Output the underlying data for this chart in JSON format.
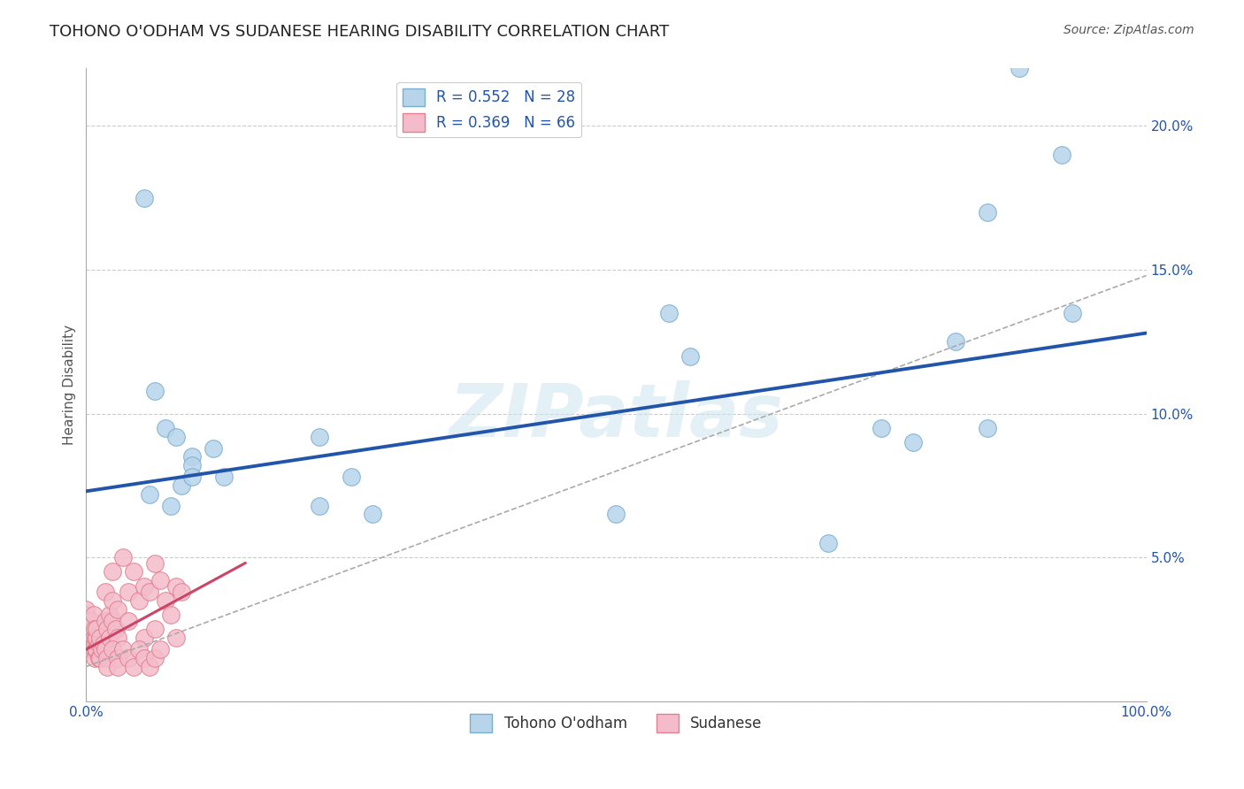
{
  "title": "TOHONO O'ODHAM VS SUDANESE HEARING DISABILITY CORRELATION CHART",
  "source": "Source: ZipAtlas.com",
  "xlabel": "",
  "ylabel": "Hearing Disability",
  "xlim": [
    0,
    1.0
  ],
  "ylim": [
    0,
    0.22
  ],
  "xticks": [
    0.0,
    0.25,
    0.5,
    0.75,
    1.0
  ],
  "xtick_labels": [
    "0.0%",
    "",
    "",
    "",
    "100.0%"
  ],
  "yticks": [
    0.0,
    0.05,
    0.1,
    0.15,
    0.2
  ],
  "ytick_labels": [
    "",
    "5.0%",
    "10.0%",
    "15.0%",
    "20.0%"
  ],
  "legend_entries": [
    {
      "label": "R = 0.552   N = 28",
      "color": "#b8d4ea",
      "edgecolor": "#7aaed0"
    },
    {
      "label": "R = 0.369   N = 66",
      "color": "#f4bccb",
      "edgecolor": "#e08090"
    }
  ],
  "tohono_scatter": [
    [
      0.055,
      0.175
    ],
    [
      0.065,
      0.108
    ],
    [
      0.075,
      0.095
    ],
    [
      0.085,
      0.092
    ],
    [
      0.09,
      0.075
    ],
    [
      0.1,
      0.085
    ],
    [
      0.06,
      0.072
    ],
    [
      0.08,
      0.068
    ],
    [
      0.1,
      0.082
    ],
    [
      0.1,
      0.078
    ],
    [
      0.12,
      0.088
    ],
    [
      0.13,
      0.078
    ],
    [
      0.22,
      0.092
    ],
    [
      0.22,
      0.068
    ],
    [
      0.25,
      0.078
    ],
    [
      0.27,
      0.065
    ],
    [
      0.5,
      0.065
    ],
    [
      0.55,
      0.135
    ],
    [
      0.57,
      0.12
    ],
    [
      0.7,
      0.055
    ],
    [
      0.75,
      0.095
    ],
    [
      0.78,
      0.09
    ],
    [
      0.82,
      0.125
    ],
    [
      0.85,
      0.17
    ],
    [
      0.85,
      0.095
    ],
    [
      0.88,
      0.22
    ],
    [
      0.92,
      0.19
    ],
    [
      0.93,
      0.135
    ]
  ],
  "sudanese_scatter": [
    [
      0.0,
      0.025
    ],
    [
      0.0,
      0.03
    ],
    [
      0.0,
      0.032
    ],
    [
      0.0,
      0.022
    ],
    [
      0.005,
      0.02
    ],
    [
      0.005,
      0.025
    ],
    [
      0.005,
      0.028
    ],
    [
      0.005,
      0.018
    ],
    [
      0.007,
      0.022
    ],
    [
      0.007,
      0.018
    ],
    [
      0.007,
      0.03
    ],
    [
      0.008,
      0.02
    ],
    [
      0.008,
      0.025
    ],
    [
      0.008,
      0.015
    ],
    [
      0.009,
      0.022
    ],
    [
      0.009,
      0.018
    ],
    [
      0.01,
      0.018
    ],
    [
      0.01,
      0.022
    ],
    [
      0.01,
      0.025
    ],
    [
      0.012,
      0.02
    ],
    [
      0.012,
      0.015
    ],
    [
      0.013,
      0.015
    ],
    [
      0.013,
      0.022
    ],
    [
      0.015,
      0.018
    ],
    [
      0.016,
      0.02
    ],
    [
      0.018,
      0.038
    ],
    [
      0.018,
      0.028
    ],
    [
      0.018,
      0.018
    ],
    [
      0.02,
      0.025
    ],
    [
      0.022,
      0.03
    ],
    [
      0.022,
      0.022
    ],
    [
      0.025,
      0.045
    ],
    [
      0.025,
      0.035
    ],
    [
      0.025,
      0.028
    ],
    [
      0.028,
      0.025
    ],
    [
      0.03,
      0.022
    ],
    [
      0.03,
      0.032
    ],
    [
      0.035,
      0.05
    ],
    [
      0.04,
      0.038
    ],
    [
      0.04,
      0.028
    ],
    [
      0.045,
      0.045
    ],
    [
      0.05,
      0.035
    ],
    [
      0.055,
      0.04
    ],
    [
      0.055,
      0.022
    ],
    [
      0.06,
      0.038
    ],
    [
      0.065,
      0.048
    ],
    [
      0.065,
      0.025
    ],
    [
      0.07,
      0.042
    ],
    [
      0.075,
      0.035
    ],
    [
      0.08,
      0.03
    ],
    [
      0.085,
      0.04
    ],
    [
      0.085,
      0.022
    ],
    [
      0.09,
      0.038
    ],
    [
      0.02,
      0.015
    ],
    [
      0.02,
      0.012
    ],
    [
      0.025,
      0.018
    ],
    [
      0.03,
      0.015
    ],
    [
      0.03,
      0.012
    ],
    [
      0.035,
      0.018
    ],
    [
      0.04,
      0.015
    ],
    [
      0.045,
      0.012
    ],
    [
      0.05,
      0.018
    ],
    [
      0.055,
      0.015
    ],
    [
      0.06,
      0.012
    ],
    [
      0.065,
      0.015
    ],
    [
      0.07,
      0.018
    ]
  ],
  "tohono_line_x": [
    0.0,
    1.0
  ],
  "tohono_line_y": [
    0.073,
    0.128
  ],
  "sudanese_solid_line_x": [
    0.0,
    0.15
  ],
  "sudanese_solid_line_y": [
    0.018,
    0.048
  ],
  "sudanese_dashed_line_x": [
    0.0,
    1.0
  ],
  "sudanese_dashed_line_y": [
    0.012,
    0.148
  ],
  "tohono_color": "#2255aa",
  "sudanese_solid_color": "#cc4466",
  "sudanese_dashed_color": "#aaaaaa",
  "tohono_scatter_color": "#b8d4ea",
  "sudanese_scatter_color": "#f4bccb",
  "tohono_edge_color": "#7aaed0",
  "sudanese_edge_color": "#e08090",
  "watermark": "ZIPatlas",
  "background_color": "#ffffff",
  "grid_color": "#cccccc",
  "title_fontsize": 13,
  "axis_label_fontsize": 11,
  "tick_fontsize": 11,
  "source_fontsize": 10
}
